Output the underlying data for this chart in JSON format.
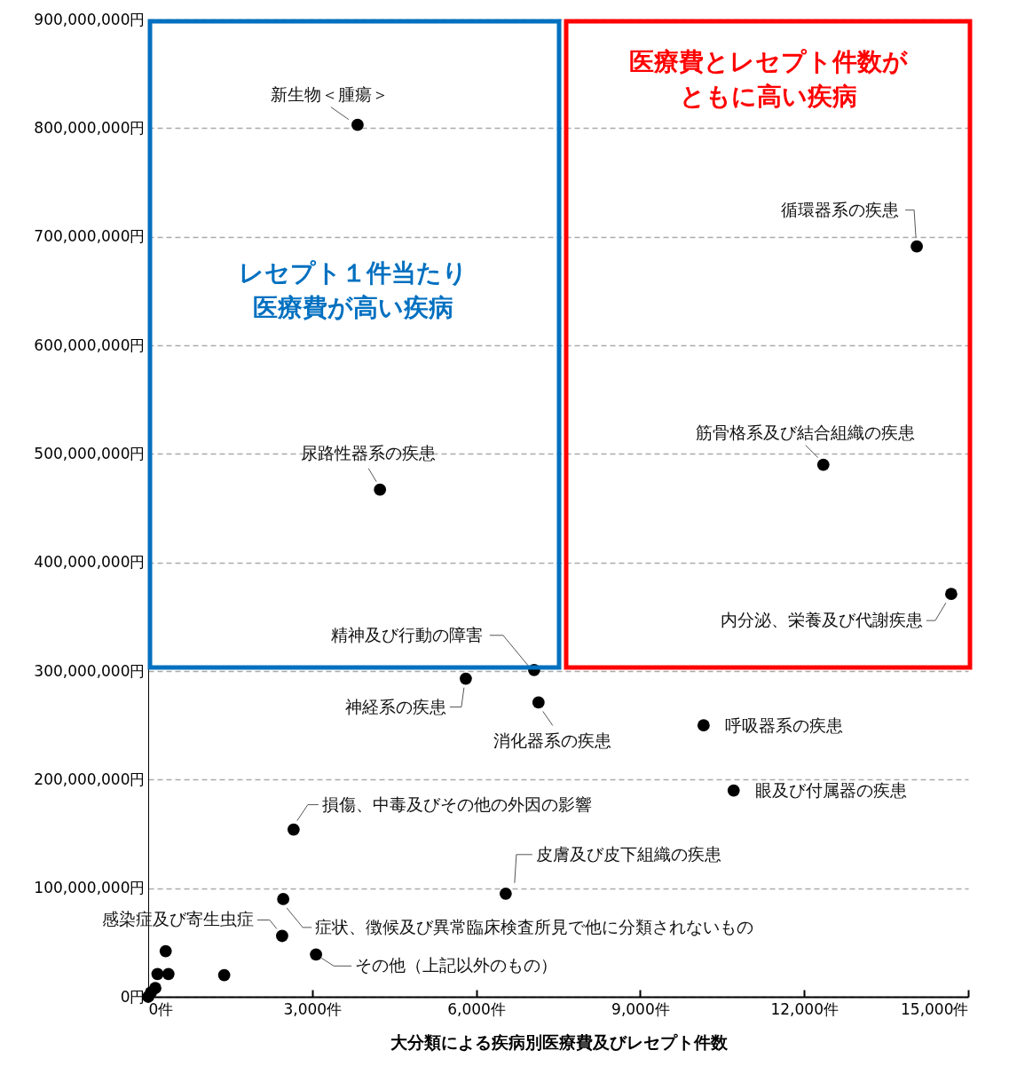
{
  "chart_data": {
    "type": "scatter",
    "xlabel": "大分類による疾病別医療費及びレセプト件数",
    "x": [
      3830,
      14060,
      12350,
      4240,
      14690,
      7060,
      5810,
      7140,
      10160,
      10710,
      2660,
      6540,
      2470,
      2450,
      3070,
      1390,
      320,
      170,
      370,
      130,
      50,
      0
    ],
    "values": [
      803000000,
      691000000,
      490000000,
      467000000,
      371000000,
      301000000,
      293000000,
      271000000,
      250000000,
      190000000,
      154000000,
      95000000,
      90000000,
      56000000,
      39000000,
      20000000,
      42000000,
      21000000,
      21000000,
      8000000,
      4000000,
      0
    ],
    "color": "#000000",
    "marker": "circle",
    "grid": "y",
    "xlim": [
      0,
      15000
    ],
    "xticks": [
      {
        "value": 0,
        "label": "0件"
      },
      {
        "value": 3000,
        "label": "3,000件"
      },
      {
        "value": 6000,
        "label": "6,000件"
      },
      {
        "value": 9000,
        "label": "9,000件"
      },
      {
        "value": 12000,
        "label": "12,000件"
      },
      {
        "value": 15000,
        "label": "15,000件"
      }
    ],
    "ylim": [
      0,
      900000000
    ],
    "yticks": [
      {
        "value": 0,
        "label": "0円"
      },
      {
        "value": 100000000,
        "label": "100,000,000円"
      },
      {
        "value": 200000000,
        "label": "200,000,000円"
      },
      {
        "value": 300000000,
        "label": "300,000,000円"
      },
      {
        "value": 400000000,
        "label": "400,000,000円"
      },
      {
        "value": 500000000,
        "label": "500,000,000円"
      },
      {
        "value": 600000000,
        "label": "600,000,000円"
      },
      {
        "value": 700000000,
        "label": "700,000,000円"
      },
      {
        "value": 800000000,
        "label": "800,000,000円"
      },
      {
        "value": 900000000,
        "label": "900,000,000円"
      }
    ],
    "annotations": [
      "レセプト１件当たり",
      "医療費が高い疾病",
      "医療費とレセプト件数が",
      "ともに高い疾病",
      {
        "text": "新生物＜腫瘍＞",
        "x": 3830,
        "y": 803000000
      },
      {
        "text": "循環器系の疾患",
        "x": 14060,
        "y": 691000000
      },
      {
        "text": "筋骨格系及び結合組織の疾患",
        "x": 12350,
        "y": 490000000
      },
      {
        "text": "尿路性器系の疾患",
        "x": 4240,
        "y": 467000000
      },
      {
        "text": "内分泌、栄養及び代謝疾患",
        "x": 14690,
        "y": 371000000
      },
      {
        "text": "精神及び行動の障害",
        "x": 7060,
        "y": 301000000
      },
      {
        "text": "神経系の疾患",
        "x": 5810,
        "y": 293000000
      },
      {
        "text": "消化器系の疾患",
        "x": 7140,
        "y": 271000000
      },
      {
        "text": "呼吸器系の疾患",
        "x": 10160,
        "y": 250000000
      },
      {
        "text": "眼及び付属器の疾患",
        "x": 10710,
        "y": 190000000
      },
      {
        "text": "損傷、中毒及びその他の外因の影響",
        "x": 2660,
        "y": 154000000
      },
      {
        "text": "皮膚及び皮下組織の疾患",
        "x": 6540,
        "y": 95000000
      },
      {
        "text": "症状、徴候及び異常臨床検査所見で他に分類されないもの",
        "x": 2470,
        "y": 90000000
      },
      {
        "text": "感染症及び寄生虫症",
        "x": 2450,
        "y": 56000000
      },
      {
        "text": "その他（上記以外のもの）",
        "x": 3070,
        "y": 39000000
      }
    ]
  }
}
